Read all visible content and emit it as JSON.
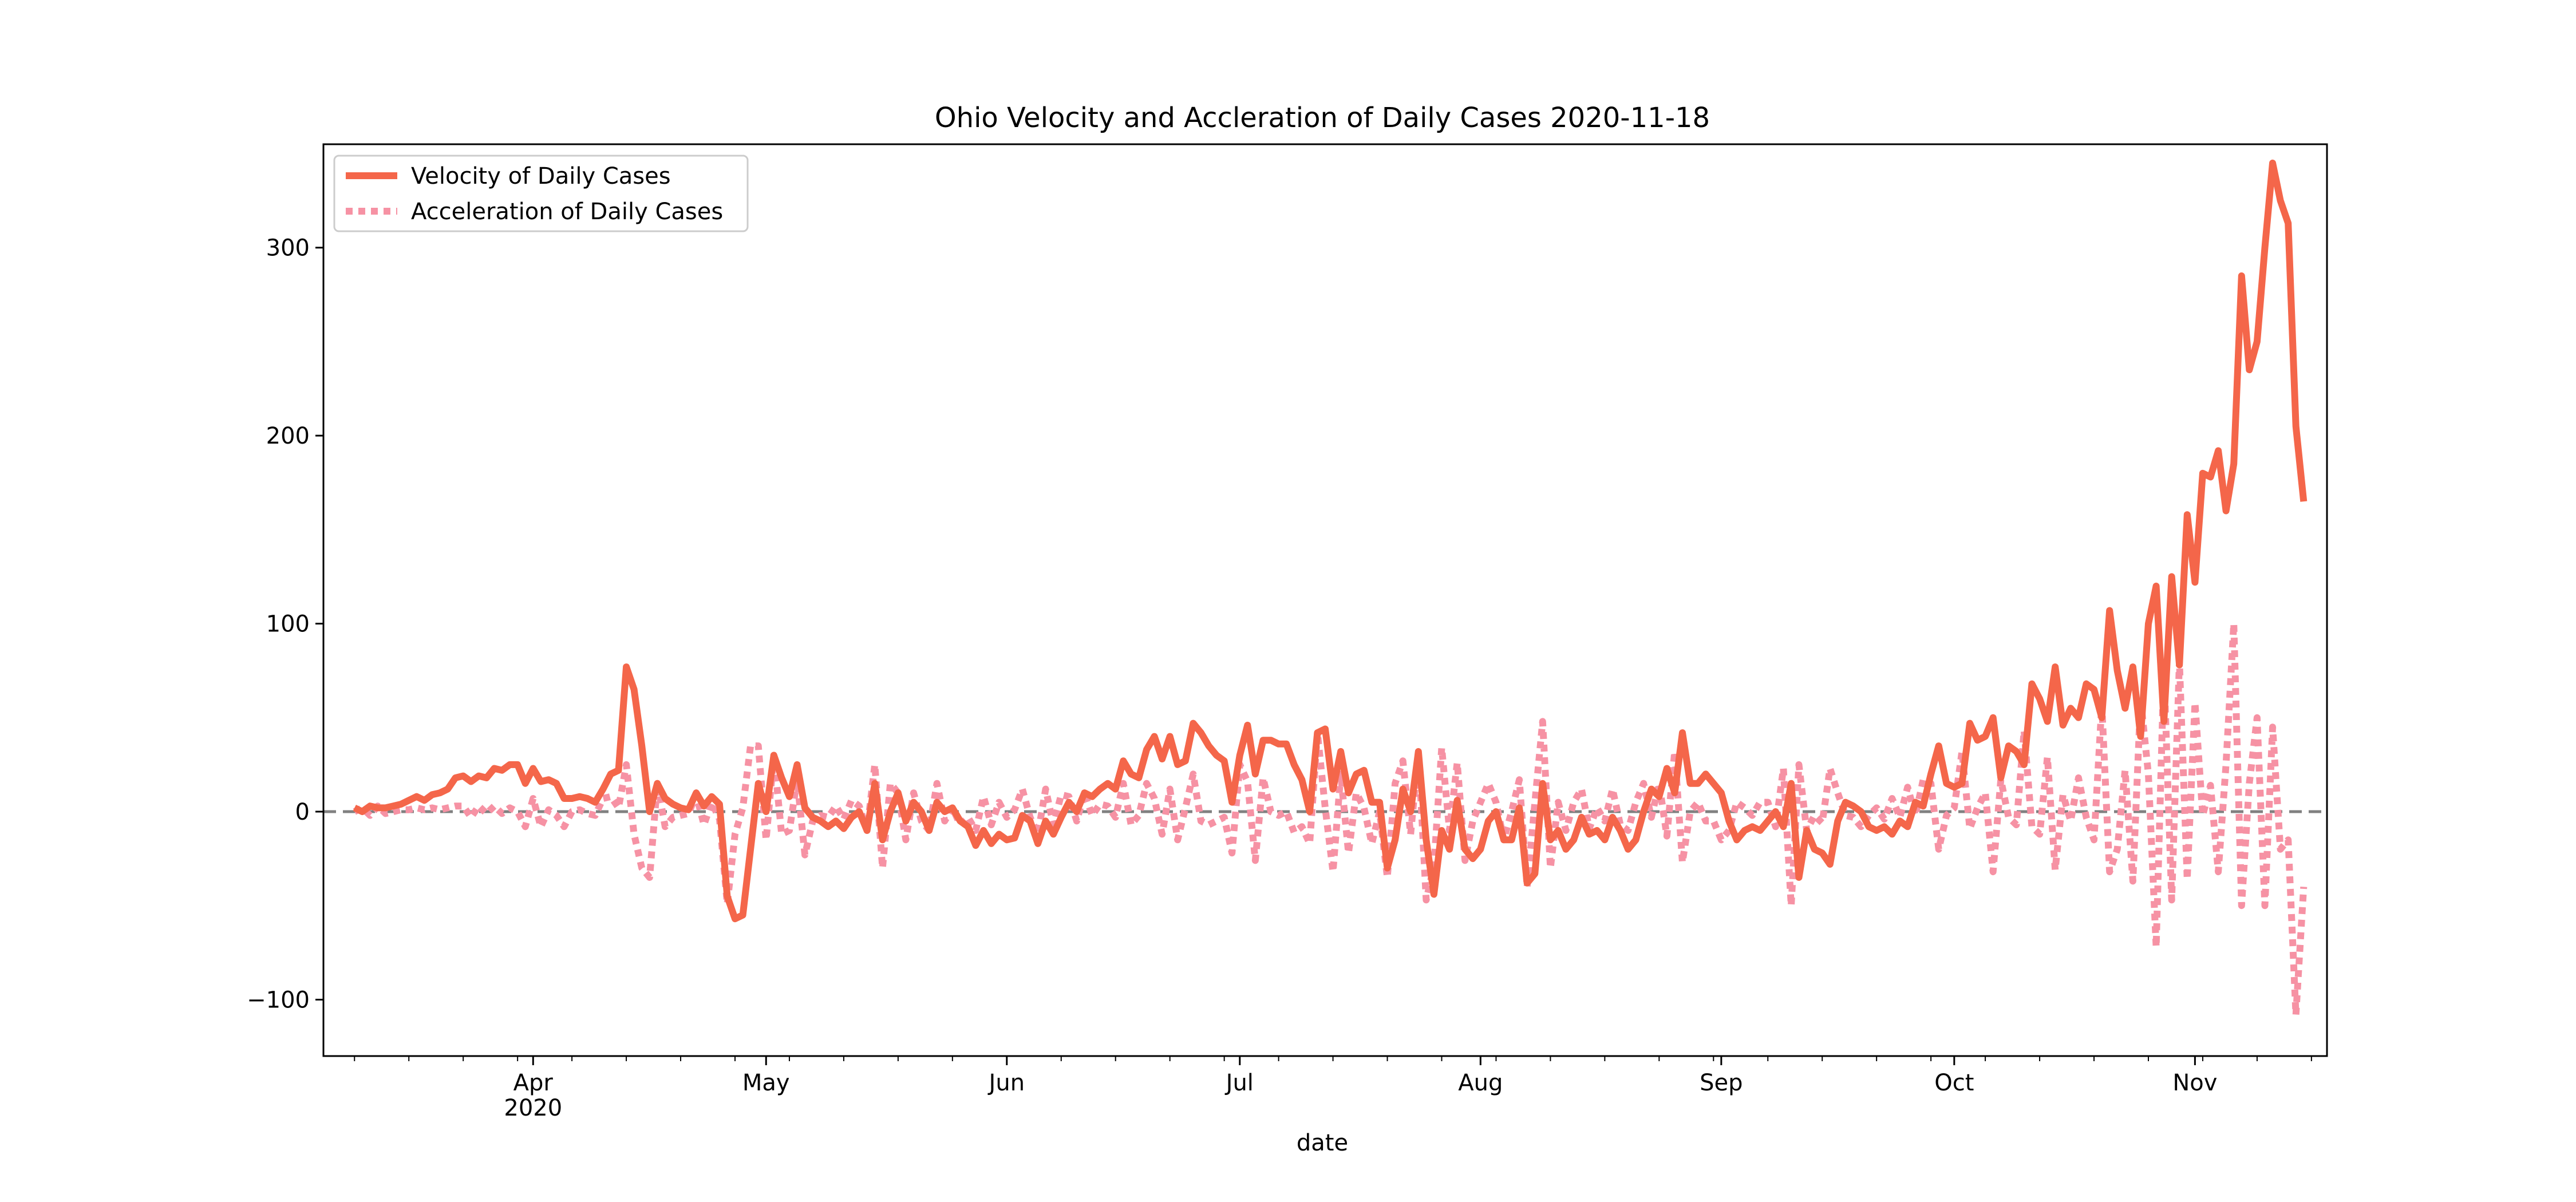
{
  "chart_data": {
    "type": "line",
    "title": "Ohio Velocity and Accleration of Daily Cases 2020-11-18",
    "xlabel": "date",
    "ylabel": "",
    "x_start": "2020-03-09",
    "x_end": "2020-11-18",
    "ylim": [
      -130,
      355
    ],
    "xlim": [
      "2020-03-05",
      "2020-11-18"
    ],
    "yticks": [
      {
        "value": -100,
        "label": "−100"
      },
      {
        "value": 0,
        "label": "0"
      },
      {
        "value": 100,
        "label": "100"
      },
      {
        "value": 200,
        "label": "200"
      },
      {
        "value": 300,
        "label": "300"
      }
    ],
    "xticks": [
      {
        "date": "2020-04-01",
        "label": "Apr",
        "sublabel": "2020"
      },
      {
        "date": "2020-05-01",
        "label": "May"
      },
      {
        "date": "2020-06-01",
        "label": "Jun"
      },
      {
        "date": "2020-07-01",
        "label": "Jul"
      },
      {
        "date": "2020-08-01",
        "label": "Aug"
      },
      {
        "date": "2020-09-01",
        "label": "Sep"
      },
      {
        "date": "2020-10-01",
        "label": "Oct"
      },
      {
        "date": "2020-11-01",
        "label": "Nov"
      }
    ],
    "legend_position": "top-left",
    "baseline": 0,
    "series": [
      {
        "name": "Velocity of Daily Cases",
        "color": "#f4664a",
        "style": "solid",
        "values": [
          2,
          0,
          3,
          2,
          2,
          3,
          4,
          6,
          8,
          6,
          9,
          10,
          12,
          18,
          19,
          16,
          19,
          18,
          23,
          22,
          25,
          25,
          15,
          23,
          16,
          17,
          15,
          7,
          7,
          8,
          7,
          5,
          12,
          20,
          22,
          77,
          65,
          35,
          0,
          15,
          7,
          4,
          2,
          1,
          10,
          3,
          8,
          4,
          -45,
          -57,
          -55,
          -20,
          15,
          0,
          30,
          18,
          8,
          25,
          2,
          -3,
          -5,
          -8,
          -5,
          -9,
          -3,
          0,
          -10,
          15,
          -15,
          0,
          10,
          -5,
          5,
          0,
          -10,
          5,
          0,
          2,
          -5,
          -8,
          -18,
          -10,
          -17,
          -12,
          -15,
          -14,
          -2,
          -5,
          -17,
          -5,
          -12,
          -3,
          5,
          0,
          10,
          8,
          12,
          15,
          12,
          27,
          20,
          18,
          33,
          40,
          28,
          40,
          25,
          27,
          47,
          42,
          35,
          30,
          27,
          5,
          30,
          46,
          20,
          38,
          38,
          36,
          36,
          25,
          17,
          0,
          42,
          44,
          12,
          32,
          10,
          20,
          22,
          5,
          5,
          -30,
          -15,
          12,
          0,
          32,
          -15,
          -44,
          -10,
          -20,
          6,
          -20,
          -25,
          -20,
          -5,
          0,
          -15,
          -15,
          2,
          -38,
          -33,
          15,
          -15,
          -10,
          -20,
          -15,
          -3,
          -12,
          -10,
          -15,
          -3,
          -10,
          -20,
          -15,
          0,
          12,
          8,
          23,
          10,
          42,
          15,
          15,
          20,
          15,
          10,
          -5,
          -15,
          -10,
          -8,
          -10,
          -5,
          0,
          -8,
          15,
          -35,
          -10,
          -20,
          -22,
          -28,
          -5,
          5,
          3,
          0,
          -8,
          -10,
          -8,
          -12,
          -5,
          -8,
          5,
          3,
          20,
          35,
          15,
          13,
          15,
          47,
          38,
          40,
          50,
          18,
          35,
          32,
          25,
          68,
          60,
          48,
          77,
          46,
          55,
          50,
          68,
          65,
          50,
          107,
          75,
          55,
          77,
          40,
          100,
          120,
          48,
          125,
          78,
          158,
          122,
          180,
          178,
          192,
          160,
          185,
          285,
          235,
          250,
          300,
          345,
          325,
          313,
          205,
          165
        ]
      },
      {
        "name": "Acceleration of Daily Cases",
        "color": "#f692a4",
        "style": "dotted",
        "values": [
          0,
          2,
          -2,
          3,
          -1,
          0,
          1,
          1,
          2,
          1,
          2,
          1,
          2,
          3,
          3,
          -3,
          3,
          -1,
          3,
          -1,
          2,
          0,
          -8,
          7,
          -8,
          1,
          -2,
          -8,
          0,
          1,
          -1,
          -2,
          7,
          8,
          2,
          25,
          -12,
          -30,
          -35,
          15,
          -8,
          -3,
          -2,
          -1,
          9,
          -7,
          5,
          -4,
          -49,
          -12,
          2,
          35,
          35,
          -15,
          30,
          -12,
          -10,
          17,
          -23,
          -5,
          -2,
          -3,
          3,
          -4,
          6,
          3,
          -10,
          25,
          -30,
          15,
          10,
          -15,
          10,
          -5,
          -10,
          15,
          -5,
          2,
          -7,
          -3,
          -10,
          8,
          -7,
          5,
          -3,
          1,
          12,
          -3,
          -12,
          12,
          -7,
          9,
          8,
          -5,
          10,
          -2,
          4,
          3,
          -3,
          15,
          -7,
          -2,
          15,
          7,
          -12,
          12,
          -15,
          2,
          20,
          -5,
          -7,
          -5,
          -3,
          -22,
          25,
          16,
          -26,
          18,
          0,
          -2,
          0,
          -11,
          -8,
          -17,
          42,
          2,
          -32,
          20,
          -22,
          10,
          2,
          -17,
          0,
          -35,
          15,
          27,
          -12,
          32,
          -47,
          -29,
          34,
          -10,
          26,
          -26,
          -5,
          5,
          15,
          5,
          -15,
          0,
          17,
          -40,
          5,
          48,
          -30,
          5,
          -10,
          5,
          12,
          -9,
          2,
          -5,
          12,
          -7,
          -10,
          5,
          15,
          -3,
          15,
          -13,
          32,
          -27,
          0,
          5,
          -5,
          -5,
          -15,
          -10,
          5,
          2,
          -2,
          5,
          5,
          -8,
          23,
          -50,
          25,
          -10,
          -2,
          -6,
          23,
          10,
          -2,
          -3,
          -8,
          -2,
          2,
          -4,
          7,
          -3,
          13,
          -2,
          17,
          15,
          -20,
          -2,
          2,
          32,
          -9,
          2,
          10,
          -32,
          17,
          -3,
          -7,
          43,
          -8,
          -12,
          29,
          -31,
          9,
          -5,
          18,
          -3,
          -15,
          57,
          -32,
          -20,
          22,
          -37,
          60,
          20,
          -72,
          77,
          -47,
          80,
          -36,
          58,
          -2,
          14,
          -32,
          25,
          100,
          -50,
          15,
          50,
          -50,
          45,
          -20,
          -15,
          -108,
          -40
        ]
      }
    ]
  }
}
